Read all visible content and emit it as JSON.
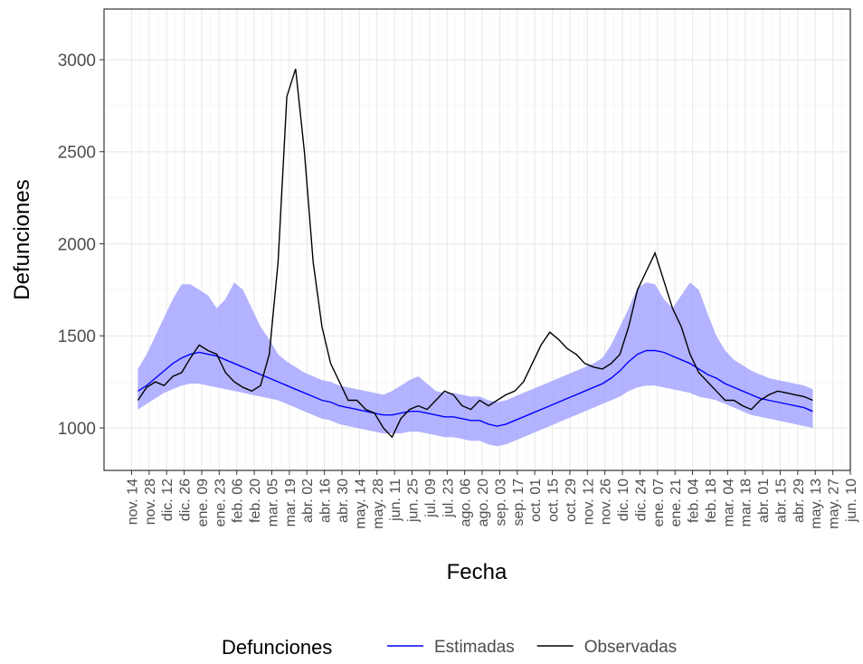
{
  "chart_data": {
    "type": "line",
    "x_label": "Fecha",
    "y_label": "Defunciones",
    "legend_title": "Defunciones",
    "legend_position": "bottom",
    "grid": true,
    "x": [
      5,
      12,
      19,
      26,
      33,
      40,
      47,
      54,
      61,
      68,
      75,
      82,
      89,
      96,
      103,
      110,
      117,
      124,
      131,
      138,
      145,
      152,
      159,
      166,
      173,
      180,
      187,
      194,
      201,
      208,
      215,
      222,
      229,
      236,
      243,
      250,
      257,
      264,
      271,
      278,
      285,
      292,
      299,
      306,
      313,
      320,
      327,
      334,
      341,
      348,
      355,
      362,
      369,
      376,
      383,
      390,
      397,
      404,
      411,
      418,
      425,
      432,
      439,
      446,
      453,
      460,
      467,
      474,
      481,
      488,
      495,
      502,
      509,
      516,
      523,
      530,
      537,
      544
    ],
    "band": {
      "color": "#9999ff",
      "lower": [
        1100,
        1130,
        1160,
        1190,
        1210,
        1230,
        1240,
        1240,
        1230,
        1220,
        1210,
        1200,
        1190,
        1180,
        1170,
        1160,
        1150,
        1130,
        1110,
        1090,
        1070,
        1050,
        1040,
        1020,
        1010,
        1000,
        990,
        980,
        970,
        970,
        970,
        980,
        980,
        970,
        960,
        950,
        950,
        940,
        930,
        930,
        910,
        900,
        910,
        930,
        950,
        970,
        990,
        1010,
        1030,
        1050,
        1070,
        1090,
        1110,
        1130,
        1150,
        1170,
        1200,
        1220,
        1230,
        1230,
        1220,
        1210,
        1200,
        1190,
        1170,
        1160,
        1150,
        1130,
        1110,
        1090,
        1070,
        1060,
        1050,
        1040,
        1030,
        1020,
        1010,
        1000
      ],
      "upper": [
        1320,
        1400,
        1500,
        1600,
        1700,
        1780,
        1780,
        1750,
        1720,
        1650,
        1700,
        1790,
        1750,
        1650,
        1550,
        1480,
        1400,
        1360,
        1330,
        1300,
        1280,
        1260,
        1250,
        1230,
        1220,
        1210,
        1200,
        1190,
        1180,
        1200,
        1230,
        1260,
        1280,
        1240,
        1200,
        1190,
        1190,
        1180,
        1170,
        1170,
        1150,
        1140,
        1150,
        1170,
        1190,
        1210,
        1230,
        1250,
        1270,
        1290,
        1310,
        1330,
        1350,
        1380,
        1450,
        1550,
        1650,
        1760,
        1790,
        1780,
        1700,
        1650,
        1720,
        1790,
        1750,
        1620,
        1500,
        1420,
        1370,
        1340,
        1310,
        1290,
        1270,
        1260,
        1250,
        1240,
        1230,
        1210
      ]
    },
    "series": [
      {
        "name": "Estimadas",
        "color": "#0000ff",
        "values": [
          1200,
          1230,
          1270,
          1310,
          1350,
          1380,
          1400,
          1410,
          1400,
          1390,
          1370,
          1350,
          1330,
          1310,
          1290,
          1270,
          1250,
          1230,
          1210,
          1190,
          1170,
          1150,
          1140,
          1120,
          1110,
          1100,
          1090,
          1080,
          1070,
          1070,
          1080,
          1090,
          1090,
          1080,
          1070,
          1060,
          1060,
          1050,
          1040,
          1040,
          1020,
          1010,
          1020,
          1040,
          1060,
          1080,
          1100,
          1120,
          1140,
          1160,
          1180,
          1200,
          1220,
          1240,
          1270,
          1310,
          1360,
          1400,
          1420,
          1420,
          1410,
          1390,
          1370,
          1350,
          1320,
          1290,
          1270,
          1240,
          1220,
          1200,
          1180,
          1160,
          1150,
          1140,
          1130,
          1120,
          1110,
          1090
        ]
      },
      {
        "name": "Observadas",
        "color": "#000000",
        "values": [
          1150,
          1220,
          1250,
          1230,
          1280,
          1300,
          1380,
          1450,
          1420,
          1400,
          1300,
          1250,
          1220,
          1200,
          1230,
          1400,
          1900,
          2800,
          2950,
          2500,
          1900,
          1550,
          1350,
          1250,
          1150,
          1150,
          1100,
          1080,
          1000,
          950,
          1050,
          1100,
          1120,
          1100,
          1150,
          1200,
          1180,
          1120,
          1100,
          1150,
          1120,
          1150,
          1180,
          1200,
          1250,
          1350,
          1450,
          1520,
          1480,
          1430,
          1400,
          1350,
          1330,
          1320,
          1350,
          1400,
          1550,
          1750,
          1850,
          1950,
          1800,
          1650,
          1550,
          1400,
          1300,
          1250,
          1200,
          1150,
          1150,
          1120,
          1100,
          1150,
          1180,
          1200,
          1190,
          1180,
          1170,
          1150
        ]
      }
    ],
    "ylim": [
      769,
      3275
    ],
    "yticks": [
      1000,
      1500,
      2000,
      2500,
      3000
    ],
    "xlim": [
      -22,
      574
    ],
    "xticks": [
      {
        "value": 0,
        "label": "nov. 14"
      },
      {
        "value": 14,
        "label": "nov. 28"
      },
      {
        "value": 28,
        "label": "dic. 12"
      },
      {
        "value": 42,
        "label": "dic. 26"
      },
      {
        "value": 56,
        "label": "ene. 09"
      },
      {
        "value": 70,
        "label": "ene. 23"
      },
      {
        "value": 84,
        "label": "feb. 06"
      },
      {
        "value": 98,
        "label": "feb. 20"
      },
      {
        "value": 112,
        "label": "mar. 05"
      },
      {
        "value": 126,
        "label": "mar. 19"
      },
      {
        "value": 140,
        "label": "abr. 02"
      },
      {
        "value": 154,
        "label": "abr. 16"
      },
      {
        "value": 168,
        "label": "abr. 30"
      },
      {
        "value": 182,
        "label": "may. 14"
      },
      {
        "value": 196,
        "label": "may. 28"
      },
      {
        "value": 210,
        "label": "jun. 11"
      },
      {
        "value": 224,
        "label": "jun. 25"
      },
      {
        "value": 238,
        "label": "jul. 09"
      },
      {
        "value": 252,
        "label": "jul. 23"
      },
      {
        "value": 266,
        "label": "ago. 06"
      },
      {
        "value": 280,
        "label": "ago. 20"
      },
      {
        "value": 294,
        "label": "sep. 03"
      },
      {
        "value": 308,
        "label": "sep. 17"
      },
      {
        "value": 322,
        "label": "oct. 01"
      },
      {
        "value": 336,
        "label": "oct. 15"
      },
      {
        "value": 350,
        "label": "oct. 29"
      },
      {
        "value": 364,
        "label": "nov. 12"
      },
      {
        "value": 378,
        "label": "nov. 26"
      },
      {
        "value": 392,
        "label": "dic. 10"
      },
      {
        "value": 406,
        "label": "dic. 24"
      },
      {
        "value": 420,
        "label": "ene. 07"
      },
      {
        "value": 434,
        "label": "ene. 21"
      },
      {
        "value": 448,
        "label": "feb. 04"
      },
      {
        "value": 462,
        "label": "feb. 18"
      },
      {
        "value": 476,
        "label": "mar. 04"
      },
      {
        "value": 490,
        "label": "mar. 18"
      },
      {
        "value": 504,
        "label": "abr. 01"
      },
      {
        "value": 518,
        "label": "abr. 15"
      },
      {
        "value": 532,
        "label": "abr. 29"
      },
      {
        "value": 546,
        "label": "may. 13"
      },
      {
        "value": 560,
        "label": "may. 27"
      },
      {
        "value": 574,
        "label": "jun. 10"
      }
    ]
  }
}
